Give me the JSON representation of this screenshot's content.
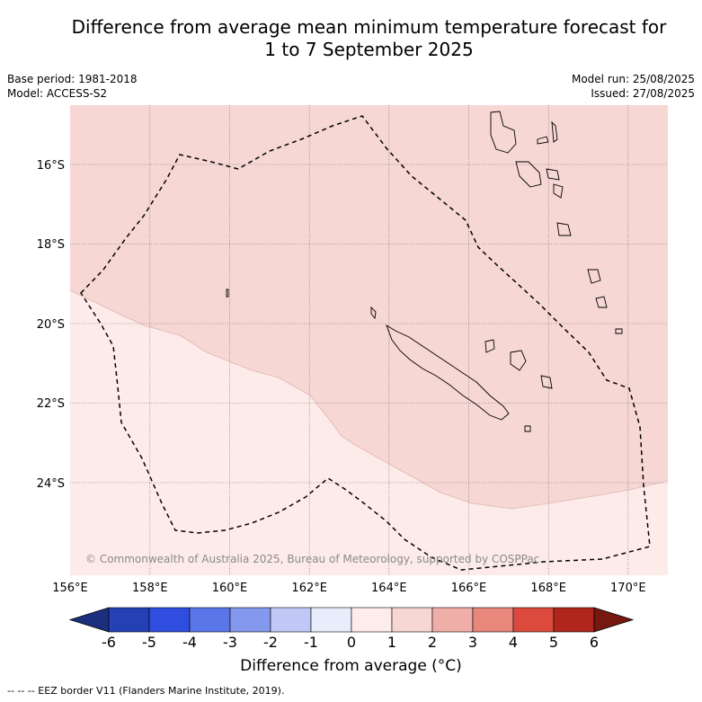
{
  "title": {
    "line1": "Difference from average mean minimum temperature forecast for",
    "line2": "1 to 7 September 2025"
  },
  "meta": {
    "base_period": "Base period: 1981-2018",
    "model": "Model: ACCESS-S2",
    "model_run": "Model run: 25/08/2025",
    "issued": "Issued: 27/08/2025"
  },
  "map": {
    "lon_labels": [
      "156°E",
      "158°E",
      "160°E",
      "162°E",
      "164°E",
      "166°E",
      "168°E",
      "170°E"
    ],
    "lat_labels": [
      "16°S",
      "18°S",
      "20°S",
      "22°S",
      "24°S"
    ],
    "copyright": "© Commonwealth of Australia 2025, Bureau of Meteorology, supported by COSPPac",
    "fill_colors": {
      "zero_to_one": "#fcebe9",
      "one_to_two": "#f6d7d4"
    }
  },
  "colorbar": {
    "ticks": [
      "-6",
      "-5",
      "-4",
      "-3",
      "-2",
      "-1",
      "0",
      "1",
      "2",
      "3",
      "4",
      "5",
      "6"
    ],
    "colors": [
      "#1c2f7e",
      "#2540b5",
      "#2f4ee0",
      "#5a76e8",
      "#8498ee",
      "#c1c8f5",
      "#e8ecfb",
      "#fdeceb",
      "#f6d7d4",
      "#f0aea8",
      "#e8877c",
      "#dc4a3d",
      "#b0261c",
      "#761810"
    ],
    "label": "Difference from average (°C)"
  },
  "footer": "--  --  -- EEZ border V11 (Flanders Marine Institute, 2019)."
}
